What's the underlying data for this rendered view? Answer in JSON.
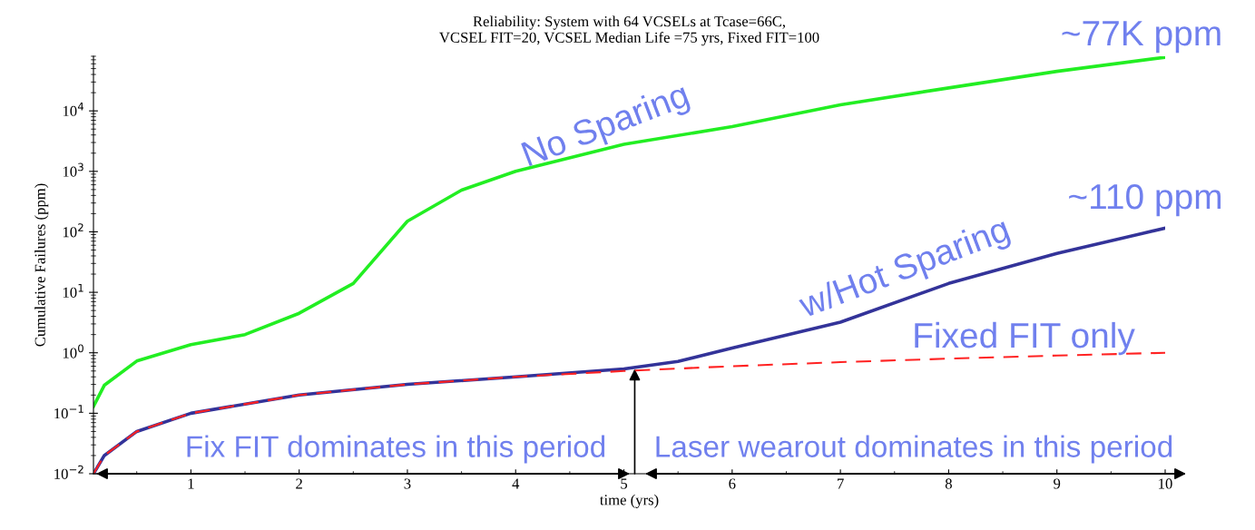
{
  "chart_data": {
    "type": "line",
    "title": "Reliability: System with 64 VCSELs at Tcase=66C,\nVCSEL FIT=20, VCSEL Median Life =75 yrs, Fixed FIT=100",
    "xlabel": "time (yrs)",
    "ylabel": "Cumulative Failures (ppm)",
    "log": "y",
    "grid": false,
    "legend": false,
    "marker": "none",
    "xlim": [
      0.1,
      10
    ],
    "xticks": [
      1,
      2,
      3,
      4,
      5,
      6,
      7,
      8,
      9,
      10
    ],
    "ylim": [
      0.01,
      80000
    ],
    "yticks": [
      {
        "value": 0.01,
        "label": "10$^{−2}$"
      },
      {
        "value": 0.1,
        "label": "10$^{−1}$"
      },
      {
        "value": 1,
        "label": "10$^{0}$"
      },
      {
        "value": 10,
        "label": "10$^{1}$"
      },
      {
        "value": 100,
        "label": "10$^{2}$"
      },
      {
        "value": 1000,
        "label": "10$^{3}$"
      },
      {
        "value": 10000,
        "label": "10$^{4}$"
      }
    ],
    "series": [
      {
        "color": "#22ee22",
        "line_style": "solid",
        "x": [
          0.1,
          0.2,
          0.5,
          1,
          1.5,
          2,
          2.5,
          3,
          3.5,
          4,
          5,
          6,
          7,
          8,
          9,
          10
        ],
        "values": [
          0.13,
          0.29,
          0.73,
          1.36,
          2.0,
          4.5,
          14,
          150,
          490,
          1000,
          2800,
          5500,
          12600,
          24000,
          45000,
          77000
        ]
      },
      {
        "color": "#333399",
        "line_style": "solid",
        "x": [
          0.1,
          0.2,
          0.5,
          1,
          2,
          3,
          4,
          5,
          5.5,
          6,
          7,
          8,
          9,
          10
        ],
        "values": [
          0.01,
          0.02,
          0.05,
          0.1,
          0.2,
          0.3,
          0.4,
          0.54,
          0.72,
          1.2,
          3.2,
          14,
          44,
          115
        ]
      },
      {
        "color": "#ff2222",
        "line_style": "dashed",
        "x": [
          0.1,
          0.2,
          0.5,
          1,
          2,
          3,
          4,
          5,
          6,
          7,
          8,
          9,
          10
        ],
        "values": [
          0.01,
          0.02,
          0.05,
          0.1,
          0.2,
          0.3,
          0.4,
          0.5,
          0.6,
          0.7,
          0.8,
          0.9,
          1.0
        ]
      }
    ],
    "annotations": [
      "No Sparing",
      "~77K ppm",
      "~110 ppm",
      "w/Hot Sparing",
      "Fixed FIT only",
      {
        "text": "Fix FIT dominates in this period",
        "x": 5.1,
        "y": 0.54
      },
      "Laser wearout dominates in this period"
    ]
  }
}
